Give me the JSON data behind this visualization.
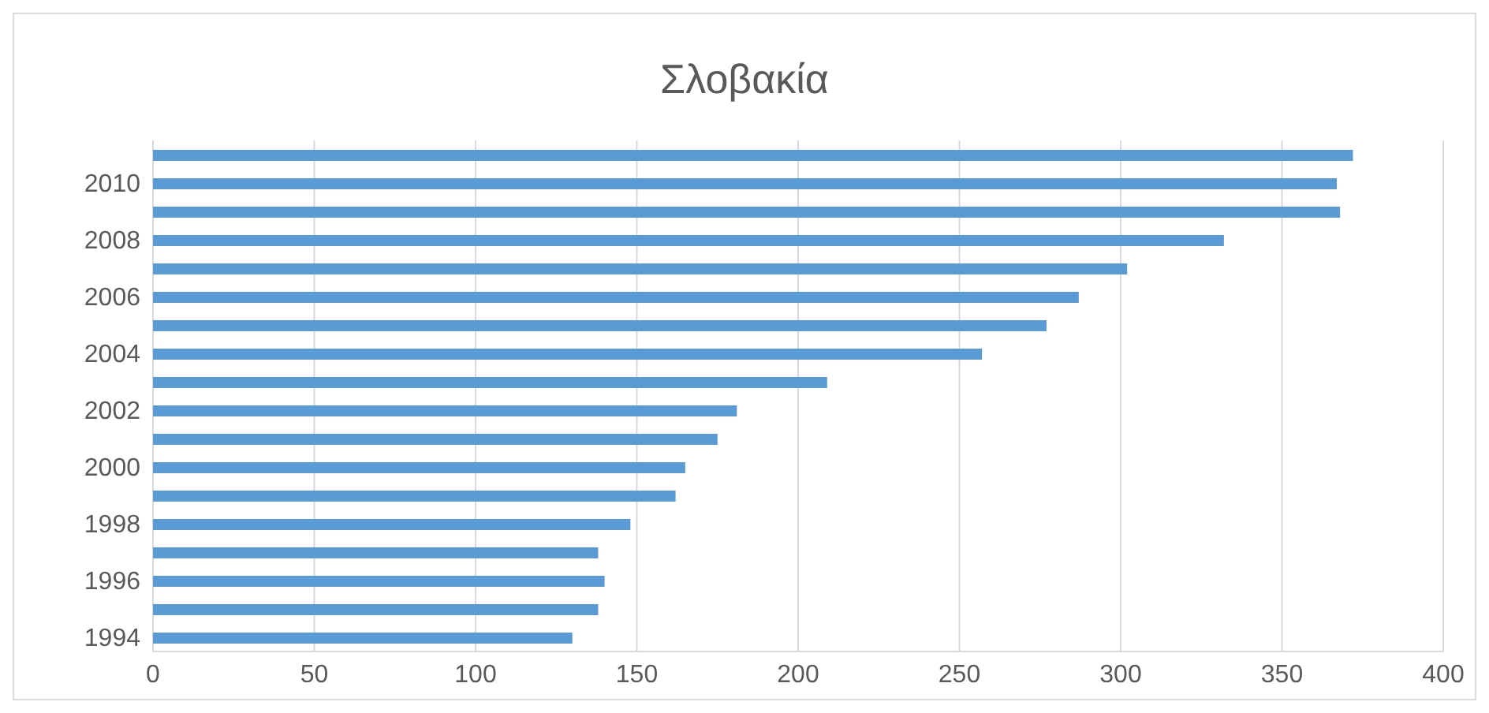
{
  "chart_data": {
    "type": "bar",
    "orientation": "horizontal",
    "title": "Σλοβακία",
    "categories": [
      null,
      "2010",
      null,
      "2008",
      null,
      "2006",
      null,
      "2004",
      null,
      "2002",
      null,
      "2000",
      null,
      "1998",
      null,
      "1996",
      null,
      "1994"
    ],
    "values": [
      372,
      367,
      368,
      332,
      302,
      287,
      277,
      257,
      209,
      181,
      175,
      165,
      162,
      148,
      138,
      140,
      138,
      130
    ],
    "color": "#5b9bd5",
    "xlim": [
      0,
      400
    ],
    "xticks": [
      0,
      50,
      100,
      150,
      200,
      250,
      300,
      350,
      400
    ],
    "grid": "x",
    "legend": false
  }
}
